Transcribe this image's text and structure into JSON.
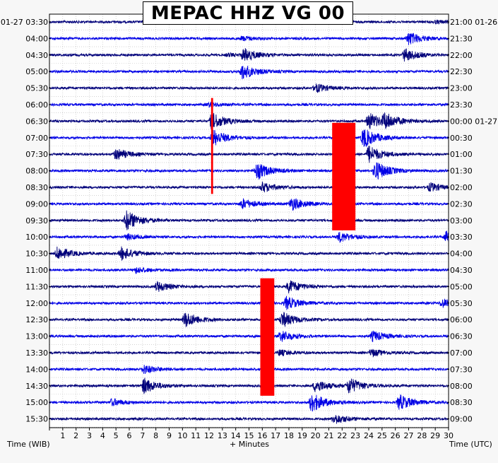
{
  "chart_data": {
    "type": "line",
    "title": "MEPAC HHZ VG 00",
    "xlabel": "+ Minutes",
    "xlabel_left": "Time (WIB)",
    "xlabel_right": "Time (UTC)",
    "xlim": [
      0,
      30
    ],
    "x_ticks": [
      "1",
      "2",
      "3",
      "4",
      "5",
      "6",
      "7",
      "8",
      "9",
      "10",
      "11",
      "12",
      "13",
      "14",
      "15",
      "16",
      "17",
      "18",
      "19",
      "20",
      "21",
      "22",
      "23",
      "24",
      "25",
      "26",
      "27",
      "28",
      "29",
      "30"
    ],
    "grid": true,
    "trace_colors": [
      "#00007a",
      "#0000e6"
    ],
    "clip_color": "#ff0000",
    "rows": [
      {
        "left": "01-27 03:30",
        "right": "21:00 01-26"
      },
      {
        "left": "04:00",
        "right": "21:30"
      },
      {
        "left": "04:30",
        "right": "22:00"
      },
      {
        "left": "05:00",
        "right": "22:30"
      },
      {
        "left": "05:30",
        "right": "23:00"
      },
      {
        "left": "06:00",
        "right": "23:30"
      },
      {
        "left": "06:30",
        "right": "00:00 01-27"
      },
      {
        "left": "07:00",
        "right": "00:30"
      },
      {
        "left": "07:30",
        "right": "01:00"
      },
      {
        "left": "08:00",
        "right": "01:30"
      },
      {
        "left": "08:30",
        "right": "02:00"
      },
      {
        "left": "09:00",
        "right": "02:30"
      },
      {
        "left": "09:30",
        "right": "03:00"
      },
      {
        "left": "10:00",
        "right": "03:30"
      },
      {
        "left": "10:30",
        "right": "04:00"
      },
      {
        "left": "11:00",
        "right": "04:30"
      },
      {
        "left": "11:30",
        "right": "05:00"
      },
      {
        "left": "12:00",
        "right": "05:30"
      },
      {
        "left": "12:30",
        "right": "06:00"
      },
      {
        "left": "13:00",
        "right": "06:30"
      },
      {
        "left": "13:30",
        "right": "07:00"
      },
      {
        "left": "14:00",
        "right": "07:30"
      },
      {
        "left": "14:30",
        "right": "08:00"
      },
      {
        "left": "15:00",
        "right": "08:30"
      },
      {
        "left": "15:30",
        "right": "09:00"
      }
    ],
    "events": [
      [
        {
          "t": 29.0,
          "amp": 2
        }
      ],
      [
        {
          "t": 14.5,
          "amp": 3
        },
        {
          "t": 27.0,
          "amp": 9
        }
      ],
      [
        {
          "t": 13.4,
          "amp": 2
        },
        {
          "t": 14.6,
          "amp": 9
        },
        {
          "t": 26.7,
          "amp": 9
        }
      ],
      [
        {
          "t": 14.5,
          "amp": 11
        }
      ],
      [
        {
          "t": 20.0,
          "amp": 6
        }
      ],
      [
        {
          "t": 12.0,
          "amp": 3
        }
      ],
      [
        {
          "t": 12.2,
          "amp": 12
        },
        {
          "t": 24.0,
          "amp": 12
        },
        {
          "t": 25.2,
          "amp": 10
        }
      ],
      [
        {
          "t": 12.3,
          "amp": 12
        },
        {
          "t": 23.6,
          "amp": 14
        }
      ],
      [
        {
          "t": 5.0,
          "amp": 8
        },
        {
          "t": 24.0,
          "amp": 12
        }
      ],
      [
        {
          "t": 15.6,
          "amp": 12
        },
        {
          "t": 24.5,
          "amp": 14
        }
      ],
      [
        {
          "t": 16.0,
          "amp": 7
        },
        {
          "t": 28.6,
          "amp": 6
        }
      ],
      [
        {
          "t": 14.5,
          "amp": 7
        },
        {
          "t": 18.2,
          "amp": 9
        }
      ],
      [
        {
          "t": 5.8,
          "amp": 14
        }
      ],
      [
        {
          "t": 5.8,
          "amp": 4
        },
        {
          "t": 21.8,
          "amp": 7
        },
        {
          "t": 29.8,
          "amp": 7
        }
      ],
      [
        {
          "t": 0.6,
          "amp": 9
        },
        {
          "t": 5.4,
          "amp": 9
        }
      ],
      [
        {
          "t": 6.5,
          "amp": 4
        }
      ],
      [
        {
          "t": 8.1,
          "amp": 7
        },
        {
          "t": 18.0,
          "amp": 9
        }
      ],
      [
        {
          "t": 17.8,
          "amp": 9
        },
        {
          "t": 29.5,
          "amp": 6
        }
      ],
      [
        {
          "t": 10.2,
          "amp": 11
        },
        {
          "t": 17.5,
          "amp": 11
        }
      ],
      [
        {
          "t": 17.4,
          "amp": 8
        },
        {
          "t": 24.3,
          "amp": 7
        }
      ],
      [
        {
          "t": 17.3,
          "amp": 4
        },
        {
          "t": 24.2,
          "amp": 5
        }
      ],
      [
        {
          "t": 7.1,
          "amp": 6
        }
      ],
      [
        {
          "t": 7.1,
          "amp": 11
        },
        {
          "t": 20.0,
          "amp": 9
        },
        {
          "t": 22.5,
          "amp": 11
        }
      ],
      [
        {
          "t": 4.7,
          "amp": 5
        },
        {
          "t": 19.7,
          "amp": 14
        },
        {
          "t": 26.3,
          "amp": 11
        }
      ],
      [
        {
          "t": 21.4,
          "amp": 7
        }
      ]
    ],
    "clipped": [
      {
        "t0": 12.15,
        "t1": 12.3,
        "row0": 4.6,
        "row1": 10.4
      },
      {
        "t0": 21.25,
        "t1": 23.0,
        "row0": 6.1,
        "row1": 12.6
      },
      {
        "t0": 15.85,
        "t1": 16.9,
        "row0": 15.5,
        "row1": 22.6
      }
    ]
  }
}
